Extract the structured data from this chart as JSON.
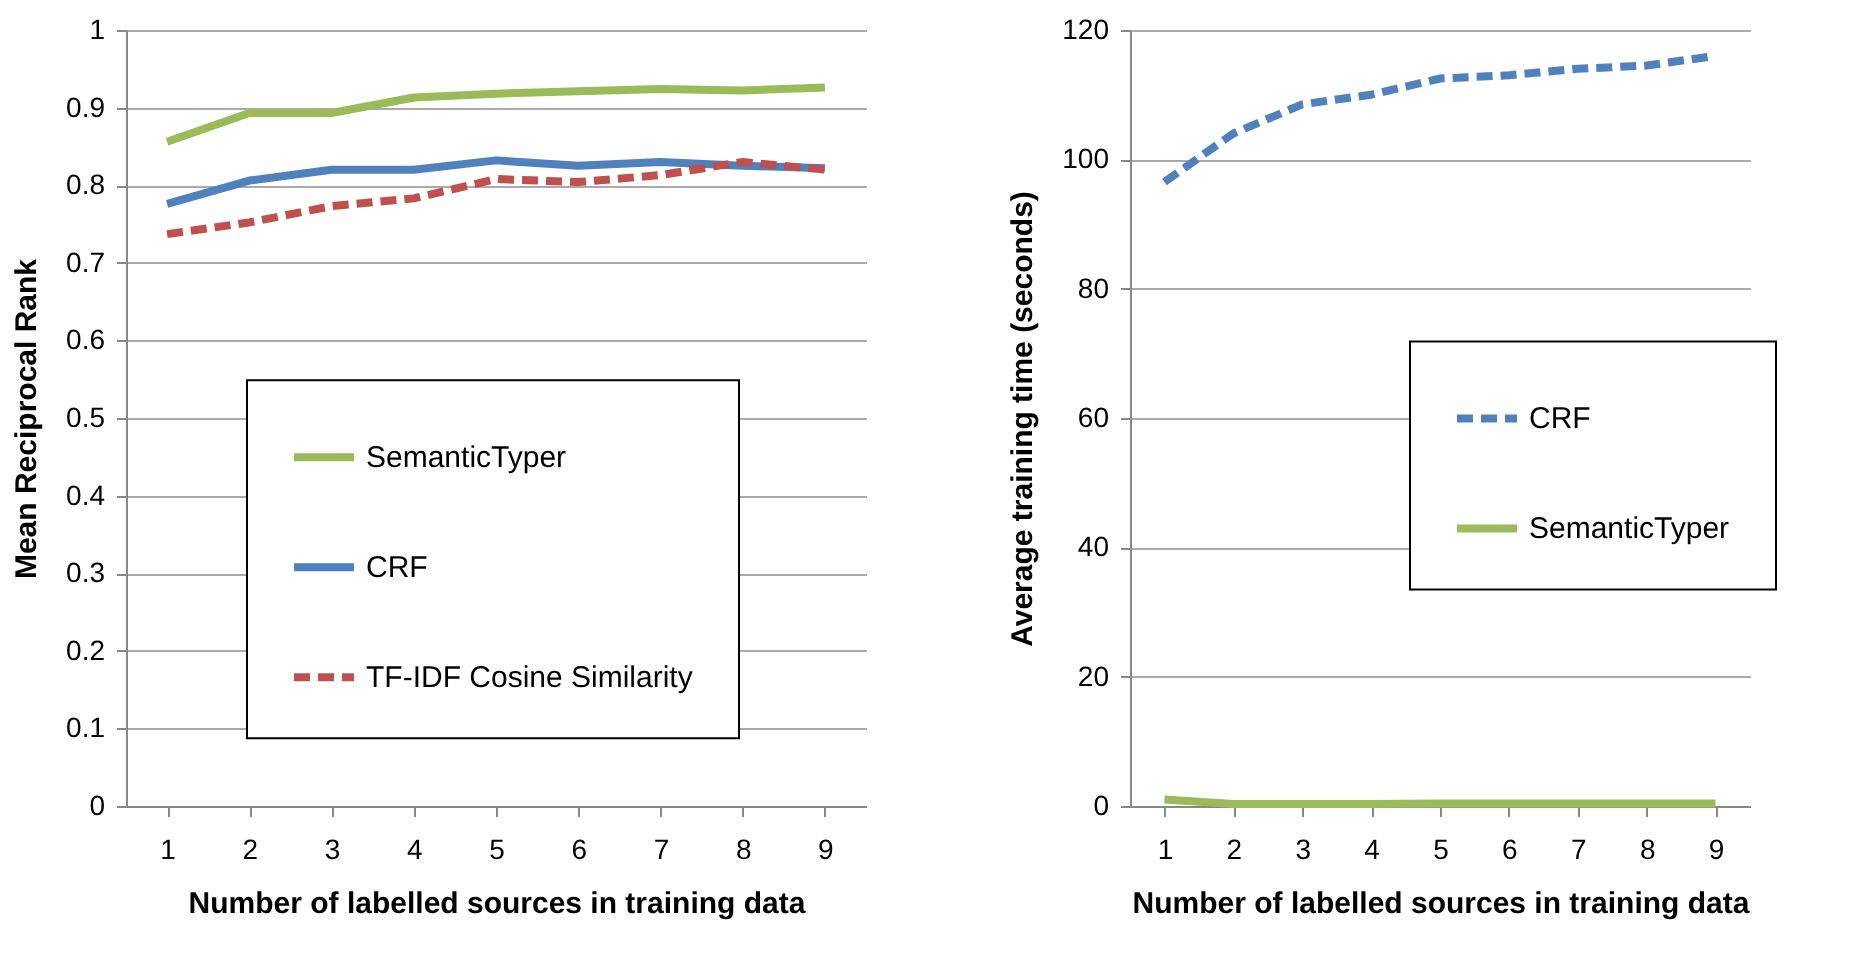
{
  "chart_data": [
    {
      "type": "line",
      "xlabel": "Number of labelled sources in training data",
      "ylabel": "Mean Reciprocal Rank",
      "categories": [
        "1",
        "2",
        "3",
        "4",
        "5",
        "6",
        "7",
        "8",
        "9"
      ],
      "ylim": [
        0,
        1
      ],
      "yticks": [
        0,
        0.1,
        0.2,
        0.3,
        0.4,
        0.5,
        0.6,
        0.7,
        0.8,
        0.9,
        1
      ],
      "grid": "y",
      "legend": "left",
      "marker": "none",
      "series": [
        {
          "name": "SemanticTyper",
          "color": "#9bbb59",
          "line_style": "solid",
          "values": [
            0.856,
            0.893,
            0.893,
            0.913,
            0.918,
            0.921,
            0.924,
            0.922,
            0.926
          ]
        },
        {
          "name": "CRF",
          "color": "#4f81bd",
          "line_style": "solid",
          "values": [
            0.776,
            0.806,
            0.82,
            0.82,
            0.832,
            0.825,
            0.83,
            0.825,
            0.822
          ]
        },
        {
          "name": "TF-IDF Cosine Similarity",
          "color": "#c0504d",
          "line_style": "dashed",
          "values": [
            0.737,
            0.752,
            0.773,
            0.783,
            0.808,
            0.804,
            0.813,
            0.83,
            0.82
          ]
        }
      ]
    },
    {
      "type": "line",
      "xlabel": "Number of labelled sources in training data",
      "ylabel": "Average training time (seconds)",
      "categories": [
        "1",
        "2",
        "3",
        "4",
        "5",
        "6",
        "7",
        "8",
        "9"
      ],
      "ylim": [
        0,
        120
      ],
      "yticks": [
        0,
        20,
        40,
        60,
        80,
        100,
        120
      ],
      "grid": "y",
      "legend": "right",
      "marker": "none",
      "series": [
        {
          "name": "CRF",
          "color": "#4f81bd",
          "line_style": "dashed",
          "values": [
            96.5,
            104,
            108.5,
            110,
            112.5,
            113,
            114,
            114.5,
            116
          ]
        },
        {
          "name": "SemanticTyper",
          "color": "#9bbb59",
          "line_style": "solid",
          "values": [
            1,
            0.3,
            0.3,
            0.3,
            0.4,
            0.4,
            0.4,
            0.4,
            0.4
          ]
        }
      ]
    }
  ]
}
